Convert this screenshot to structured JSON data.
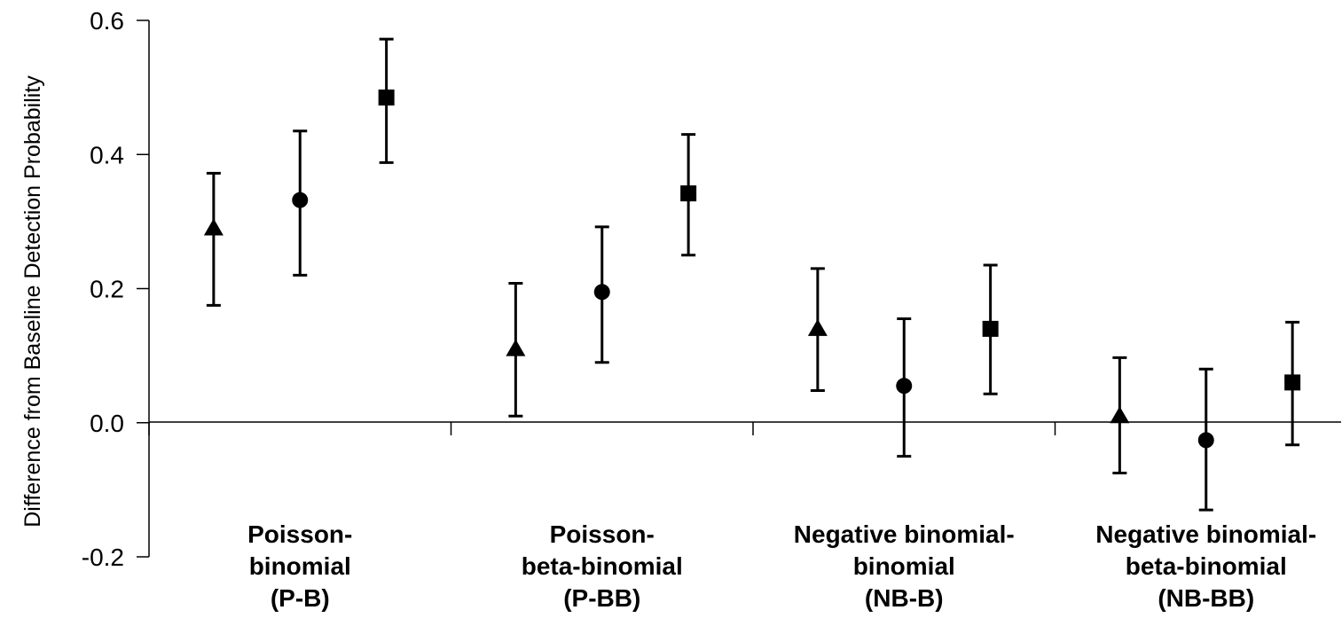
{
  "chart_data": {
    "type": "scatter",
    "title": "",
    "xlabel": "",
    "ylabel": "Difference from Baseline Detection Probability",
    "ylim": [
      -0.2,
      0.6
    ],
    "yticks": [
      "0.6",
      "0.4",
      "0.2",
      "0.0",
      "-0.2"
    ],
    "ytick_values": [
      0.6,
      0.4,
      0.2,
      0.0,
      -0.2
    ],
    "grid": false,
    "legend": "none",
    "categories": [
      {
        "lines": [
          "Poisson-",
          "binomial",
          "(P-B)"
        ]
      },
      {
        "lines": [
          "Poisson-",
          "beta-binomial",
          "(P-BB)"
        ]
      },
      {
        "lines": [
          "Negative binomial-",
          "binomial",
          "(NB-B)"
        ]
      },
      {
        "lines": [
          "Negative binomial-",
          "beta-binomial",
          "(NB-BB)"
        ]
      }
    ],
    "series": [
      {
        "marker": "triangle",
        "values": [
          0.29,
          0.11,
          0.14,
          0.01
        ],
        "lower": [
          0.175,
          0.01,
          0.048,
          -0.075
        ],
        "upper": [
          0.372,
          0.208,
          0.23,
          0.097
        ]
      },
      {
        "marker": "circle",
        "values": [
          0.332,
          0.195,
          0.055,
          -0.026
        ],
        "lower": [
          0.22,
          0.09,
          -0.05,
          -0.13
        ],
        "upper": [
          0.435,
          0.292,
          0.155,
          0.08
        ]
      },
      {
        "marker": "square",
        "values": [
          0.485,
          0.342,
          0.14,
          0.06
        ],
        "lower": [
          0.388,
          0.25,
          0.043,
          -0.033
        ],
        "upper": [
          0.572,
          0.43,
          0.235,
          0.15
        ]
      }
    ]
  }
}
